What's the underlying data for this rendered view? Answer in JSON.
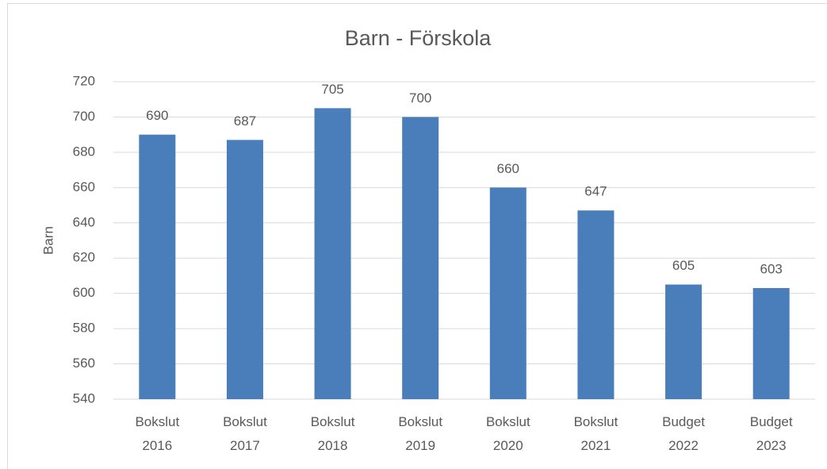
{
  "chart_data": {
    "type": "bar",
    "title": "Barn - Förskola",
    "y_label": "Barn",
    "categories": [
      "Bokslut 2016",
      "Bokslut 2017",
      "Bokslut 2018",
      "Bokslut 2019",
      "Bokslut 2020",
      "Bokslut 2021",
      "Budget 2022",
      "Budget 2023"
    ],
    "values": [
      690,
      687,
      705,
      700,
      660,
      647,
      605,
      603
    ],
    "color": "#4a7ebb",
    "ylim": [
      540,
      720
    ],
    "yticks": [
      540,
      560,
      580,
      600,
      620,
      640,
      660,
      680,
      700,
      720
    ],
    "grid": true
  }
}
